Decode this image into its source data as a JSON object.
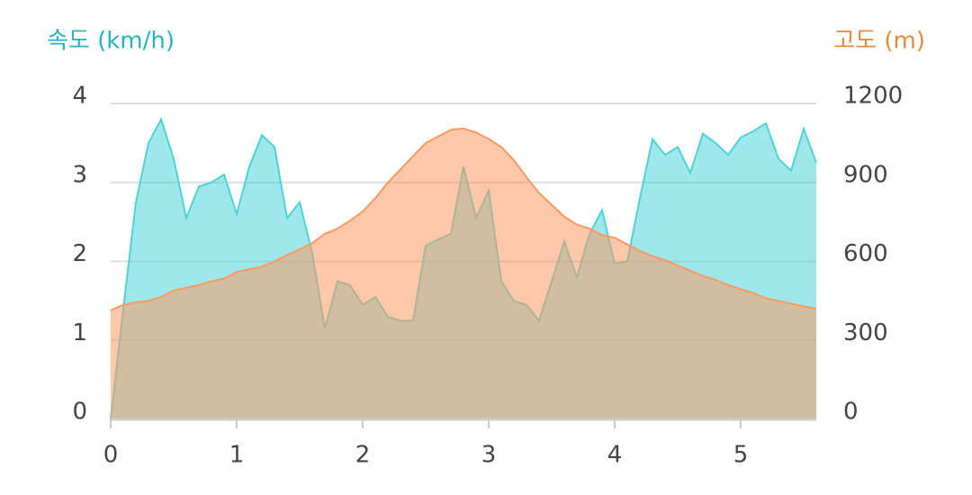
{
  "chart_data": {
    "type": "area",
    "y_label": "속도 (km/h)",
    "y2_label": "고도 (m)",
    "x": [
      0,
      0.1,
      0.2,
      0.3,
      0.4,
      0.5,
      0.6,
      0.7,
      0.8,
      0.9,
      1,
      1.1,
      1.2,
      1.3,
      1.4,
      1.5,
      1.6,
      1.7,
      1.8,
      1.9,
      2,
      2.1,
      2.2,
      2.3,
      2.4,
      2.5,
      2.6,
      2.7,
      2.8,
      2.9,
      3,
      3.1,
      3.2,
      3.3,
      3.4,
      3.5,
      3.6,
      3.7,
      3.8,
      3.9,
      4,
      4.1,
      4.2,
      4.3,
      4.4,
      4.5,
      4.6,
      4.7,
      4.8,
      4.9,
      5,
      5.1,
      5.2,
      5.3,
      5.4,
      5.5,
      5.6
    ],
    "series": [
      {
        "name": "속도",
        "color": "#4fd3da",
        "axis": "y",
        "values": [
          0,
          1.4,
          2.75,
          3.5,
          3.8,
          3.3,
          2.55,
          2.95,
          3.0,
          3.1,
          2.6,
          3.2,
          3.6,
          3.45,
          2.55,
          2.75,
          2.1,
          1.15,
          1.75,
          1.7,
          1.45,
          1.55,
          1.3,
          1.25,
          1.25,
          2.2,
          2.28,
          2.35,
          3.2,
          2.55,
          2.9,
          1.75,
          1.5,
          1.45,
          1.25,
          1.75,
          2.25,
          1.8,
          2.35,
          2.65,
          1.97,
          2.0,
          2.8,
          3.55,
          3.35,
          3.45,
          3.12,
          3.62,
          3.5,
          3.35,
          3.57,
          3.65,
          3.75,
          3.3,
          3.15,
          3.68,
          3.25
        ]
      },
      {
        "name": "고도",
        "color": "#fb9a62",
        "axis": "y2",
        "values": [
          415,
          435,
          445,
          450,
          465,
          490,
          500,
          510,
          525,
          535,
          560,
          570,
          580,
          600,
          625,
          645,
          670,
          705,
          725,
          755,
          790,
          840,
          900,
          950,
          1000,
          1050,
          1075,
          1100,
          1105,
          1090,
          1065,
          1035,
          985,
          920,
          860,
          815,
          770,
          740,
          725,
          700,
          690,
          665,
          640,
          620,
          605,
          585,
          565,
          545,
          530,
          510,
          495,
          480,
          460,
          450,
          440,
          430,
          420
        ]
      }
    ],
    "xlim": [
      0,
      5.6
    ],
    "xticks": [
      0,
      1,
      2,
      3,
      4,
      5
    ],
    "ylim": [
      0,
      4
    ],
    "yticks": [
      0,
      1,
      2,
      3,
      4
    ],
    "y2lim": [
      0,
      1200
    ],
    "y2ticks": [
      0,
      300,
      600,
      900,
      1200
    ],
    "grid": true
  }
}
